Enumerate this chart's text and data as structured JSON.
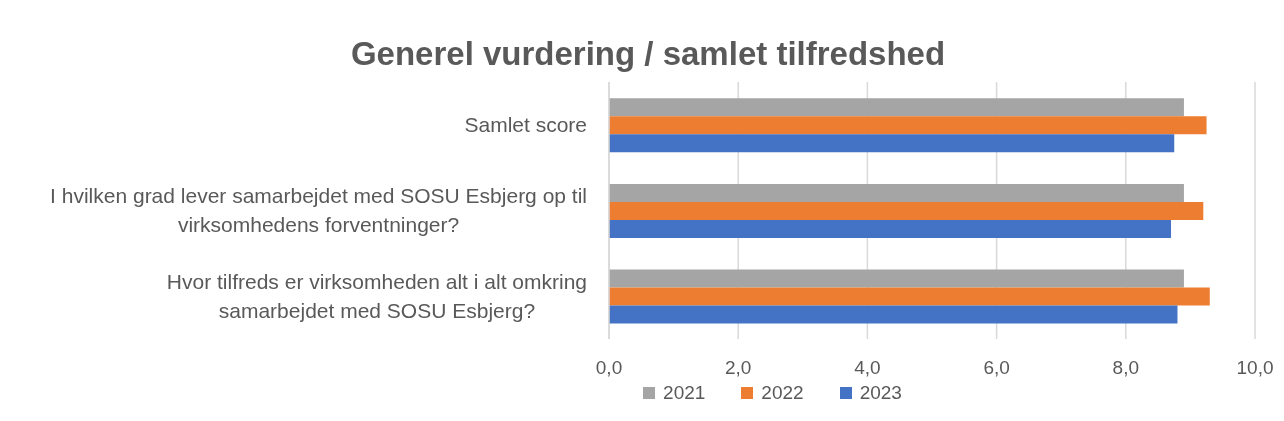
{
  "chart_data": {
    "type": "bar",
    "orientation": "horizontal",
    "title": "Generel vurdering / samlet tilfredshed",
    "categories": [
      "Samlet score",
      "I hvilken grad lever samarbejdet med SOSU Esbjerg op til virksomhedens forventninger?",
      "Hvor tilfreds er virksomheden alt i alt omkring samarbejdet med SOSU Esbjerg?"
    ],
    "series": [
      {
        "name": "2021",
        "color": "#a5a5a5",
        "values": [
          8.9,
          8.9,
          8.9
        ]
      },
      {
        "name": "2022",
        "color": "#ed7d31",
        "values": [
          9.25,
          9.2,
          9.3
        ]
      },
      {
        "name": "2023",
        "color": "#4472c4",
        "values": [
          8.75,
          8.7,
          8.8
        ]
      }
    ],
    "xlim": [
      0,
      10
    ],
    "xticks": [
      {
        "value": 0,
        "label": "0,0"
      },
      {
        "value": 2,
        "label": "2,0"
      },
      {
        "value": 4,
        "label": "4,0"
      },
      {
        "value": 6,
        "label": "6,0"
      },
      {
        "value": 8,
        "label": "8,0"
      },
      {
        "value": 10,
        "label": "10,0"
      }
    ],
    "grid": "x",
    "legend": "bottom"
  }
}
